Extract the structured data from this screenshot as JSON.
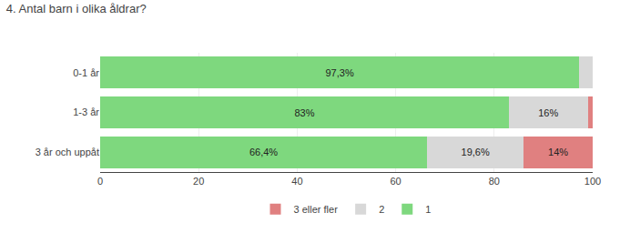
{
  "chart_data": {
    "type": "bar",
    "orientation": "horizontal",
    "stacked": true,
    "title": "4. Antal barn i olika åldrar?",
    "categories": [
      "0-1 år",
      "1-3 år",
      "3 år och uppåt"
    ],
    "series": [
      {
        "name": "1",
        "color": "#7ED87E",
        "values": [
          97.3,
          83.0,
          66.4
        ],
        "value_labels": [
          "97,3%",
          "83%",
          "66,4%"
        ]
      },
      {
        "name": "2",
        "color": "#D8D8D8",
        "values": [
          2.7,
          16.0,
          19.6
        ],
        "value_labels": [
          null,
          "16%",
          "19,6%"
        ]
      },
      {
        "name": "3 eller fler",
        "color": "#E08080",
        "values": [
          0.0,
          1.0,
          14.0
        ],
        "value_labels": [
          null,
          null,
          "14%"
        ]
      }
    ],
    "xlim": [
      0,
      100
    ],
    "xticks": [
      0,
      20,
      40,
      60,
      80,
      100
    ],
    "grid": true,
    "legend": "bottom",
    "data_labels": true
  }
}
